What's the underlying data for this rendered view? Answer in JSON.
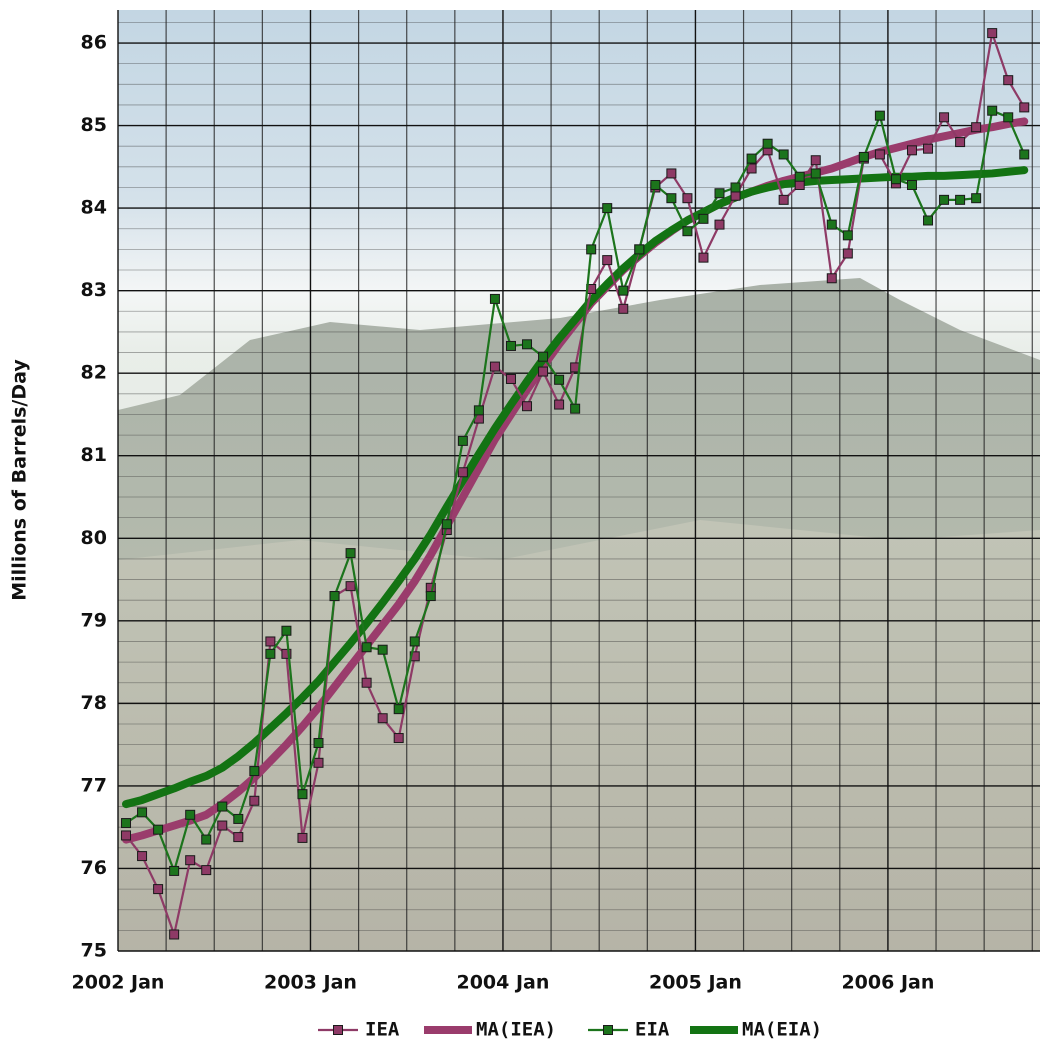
{
  "chart_data": {
    "type": "line",
    "y_label": "Millions of Barrels/Day",
    "x": [
      "2002-01",
      "2002-02",
      "2002-03",
      "2002-04",
      "2002-05",
      "2002-06",
      "2002-07",
      "2002-08",
      "2002-09",
      "2002-10",
      "2002-11",
      "2002-12",
      "2003-01",
      "2003-02",
      "2003-03",
      "2003-04",
      "2003-05",
      "2003-06",
      "2003-07",
      "2003-08",
      "2003-09",
      "2003-10",
      "2003-11",
      "2003-12",
      "2004-01",
      "2004-02",
      "2004-03",
      "2004-04",
      "2004-05",
      "2004-06",
      "2004-07",
      "2004-08",
      "2004-09",
      "2004-10",
      "2004-11",
      "2004-12",
      "2005-01",
      "2005-02",
      "2005-03",
      "2005-04",
      "2005-05",
      "2005-06",
      "2005-07",
      "2005-08",
      "2005-09",
      "2005-10",
      "2005-11",
      "2005-12",
      "2006-01",
      "2006-02",
      "2006-03",
      "2006-04",
      "2006-05",
      "2006-06",
      "2006-07",
      "2006-08",
      "2006-09"
    ],
    "xlim": [
      "2002-01",
      "2006-10"
    ],
    "xticks": [
      {
        "value": "2002-01",
        "label": "2002 Jan"
      },
      {
        "value": "2003-01",
        "label": "2003 Jan"
      },
      {
        "value": "2004-01",
        "label": "2004 Jan"
      },
      {
        "value": "2005-01",
        "label": "2005 Jan"
      },
      {
        "value": "2006-01",
        "label": "2006 Jan"
      }
    ],
    "x_minor_ticks": [
      "2002-04",
      "2002-07",
      "2002-10",
      "2003-04",
      "2003-07",
      "2003-10",
      "2004-04",
      "2004-07",
      "2004-10",
      "2005-04",
      "2005-07",
      "2005-10",
      "2006-04",
      "2006-07",
      "2006-10"
    ],
    "ylim": [
      75,
      86.4
    ],
    "yticks": [
      75,
      76,
      77,
      78,
      79,
      80,
      81,
      82,
      83,
      84,
      85,
      86
    ],
    "y_minor_ticks": [
      75.25,
      75.5,
      75.75,
      76.25,
      76.5,
      76.75,
      77.25,
      77.5,
      77.75,
      78.25,
      78.5,
      78.75,
      79.25,
      79.5,
      79.75,
      80.25,
      80.5,
      80.75,
      81.25,
      81.5,
      81.75,
      82.25,
      82.5,
      82.75,
      83.25,
      83.5,
      83.75,
      84.25,
      84.5,
      84.75,
      85.25,
      85.5,
      85.75,
      86.25
    ],
    "grid": true,
    "legend": "bottom",
    "series": [
      {
        "name": "IEA",
        "color": "#8e3a66",
        "marker": true,
        "values": [
          76.4,
          76.15,
          75.75,
          75.2,
          76.1,
          75.98,
          76.52,
          76.38,
          76.82,
          78.75,
          78.6,
          76.37,
          77.28,
          79.3,
          79.42,
          78.25,
          77.82,
          77.58,
          78.57,
          79.4,
          80.1,
          80.8,
          81.45,
          82.08,
          81.93,
          81.6,
          82.02,
          81.62,
          82.07,
          83.02,
          83.37,
          82.78,
          83.5,
          84.25,
          84.42,
          84.12,
          83.4,
          83.8,
          84.15,
          84.48,
          84.7,
          84.1,
          84.28,
          84.58,
          83.15,
          83.45,
          84.6,
          84.65,
          84.3,
          84.7,
          84.72,
          85.1,
          84.8,
          84.98,
          86.12,
          85.55,
          85.22
        ]
      },
      {
        "name": "MA(IEA)",
        "color": "#9a3c6c",
        "marker": false,
        "values": [
          76.35,
          76.4,
          76.46,
          76.52,
          76.58,
          76.65,
          76.78,
          76.93,
          77.1,
          77.3,
          77.5,
          77.72,
          77.95,
          78.2,
          78.45,
          78.7,
          78.95,
          79.2,
          79.48,
          79.8,
          80.15,
          80.5,
          80.85,
          81.2,
          81.5,
          81.8,
          82.08,
          82.35,
          82.6,
          82.85,
          83.05,
          83.25,
          83.42,
          83.58,
          83.72,
          83.85,
          83.95,
          84.05,
          84.13,
          84.2,
          84.27,
          84.33,
          84.38,
          84.43,
          84.48,
          84.55,
          84.62,
          84.68,
          84.73,
          84.78,
          84.83,
          84.87,
          84.91,
          84.95,
          84.98,
          85.02,
          85.05
        ]
      },
      {
        "name": "EIA",
        "color": "#1c741c",
        "marker": true,
        "values": [
          76.55,
          76.68,
          76.47,
          75.97,
          76.65,
          76.35,
          76.75,
          76.6,
          77.18,
          78.6,
          78.88,
          76.9,
          77.52,
          79.3,
          79.82,
          78.68,
          78.65,
          77.93,
          78.75,
          79.3,
          80.17,
          81.18,
          81.55,
          82.9,
          82.33,
          82.35,
          82.2,
          81.92,
          81.57,
          83.5,
          84.0,
          83.0,
          83.5,
          84.28,
          84.12,
          83.72,
          83.87,
          84.18,
          84.25,
          84.6,
          84.78,
          84.65,
          84.38,
          84.42,
          83.8,
          83.67,
          84.62,
          85.12,
          84.35,
          84.28,
          83.85,
          84.1,
          84.1,
          84.12,
          85.18,
          85.1,
          84.65
        ]
      },
      {
        "name": "MA(EIA)",
        "color": "#137313",
        "marker": false,
        "values": [
          76.78,
          76.83,
          76.9,
          76.97,
          77.05,
          77.12,
          77.22,
          77.36,
          77.52,
          77.7,
          77.88,
          78.07,
          78.27,
          78.5,
          78.73,
          78.97,
          79.22,
          79.48,
          79.75,
          80.05,
          80.38,
          80.7,
          81.02,
          81.33,
          81.62,
          81.9,
          82.17,
          82.42,
          82.65,
          82.88,
          83.08,
          83.27,
          83.44,
          83.6,
          83.73,
          83.85,
          83.95,
          84.05,
          84.13,
          84.2,
          84.25,
          84.29,
          84.31,
          84.33,
          84.34,
          84.35,
          84.36,
          84.37,
          84.38,
          84.38,
          84.39,
          84.39,
          84.4,
          84.41,
          84.42,
          84.44,
          84.46
        ]
      }
    ]
  }
}
